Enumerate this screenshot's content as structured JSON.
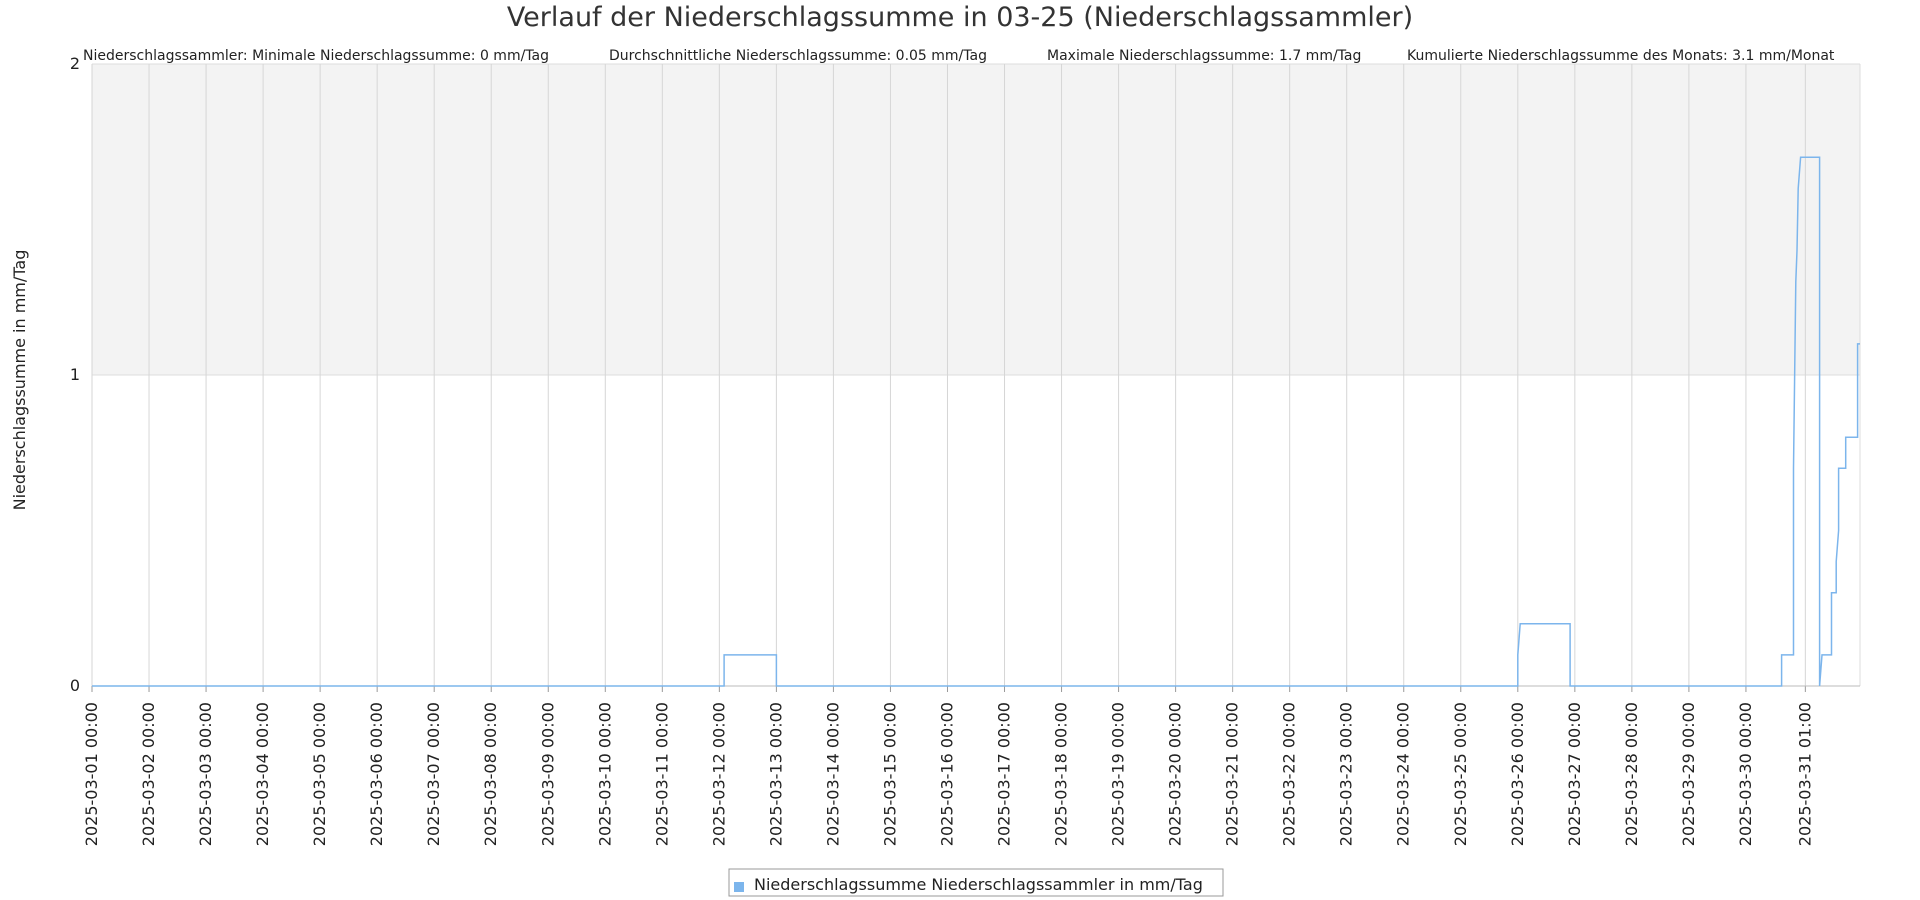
{
  "chart_data": {
    "type": "line",
    "title": "Verlauf der Niederschlagssumme in 03-25 (Niederschlagssammler)",
    "stats": [
      "Niederschlagssammler: Minimale Niederschlagssumme: 0 mm/Tag",
      "Durchschnittliche Niederschlagssumme: 0.05 mm/Tag",
      "Maximale Niederschlagssumme: 1.7 mm/Tag",
      "Kumulierte Niederschlagssumme des Monats: 3.1 mm/Monat"
    ],
    "ylabel": "Niederschlagssumme in mm/Tag",
    "xlabel": "",
    "ylim": [
      0,
      2
    ],
    "yticks": [
      "0",
      "1",
      "2"
    ],
    "xlim": [
      "2025-03-01 00:00",
      "2025-04-01 00:00"
    ],
    "xticks": [
      "2025-03-01 00:00",
      "2025-03-02 00:00",
      "2025-03-03 00:00",
      "2025-03-04 00:00",
      "2025-03-05 00:00",
      "2025-03-06 00:00",
      "2025-03-07 00:00",
      "2025-03-08 00:00",
      "2025-03-09 00:00",
      "2025-03-10 00:00",
      "2025-03-11 00:00",
      "2025-03-12 00:00",
      "2025-03-13 00:00",
      "2025-03-14 00:00",
      "2025-03-15 00:00",
      "2025-03-16 00:00",
      "2025-03-17 00:00",
      "2025-03-18 00:00",
      "2025-03-19 00:00",
      "2025-03-20 00:00",
      "2025-03-21 00:00",
      "2025-03-22 00:00",
      "2025-03-23 00:00",
      "2025-03-24 00:00",
      "2025-03-25 00:00",
      "2025-03-26 00:00",
      "2025-03-27 00:00",
      "2025-03-28 00:00",
      "2025-03-29 00:00",
      "2025-03-30 00:00",
      "2025-03-31 01:00"
    ],
    "highlight_band": [
      1,
      2
    ],
    "grid": true,
    "legend_position": "bottom-center",
    "series": [
      {
        "name": "Niederschlagssumme Niederschlagssammler in mm/Tag",
        "color": "#7cb5ec",
        "step": true,
        "points": [
          [
            "2025-03-01 00:00",
            0
          ],
          [
            "2025-03-12 02:00",
            0
          ],
          [
            "2025-03-12 02:00",
            0.1
          ],
          [
            "2025-03-13 00:00",
            0.1
          ],
          [
            "2025-03-13 00:00",
            0
          ],
          [
            "2025-03-26 00:00",
            0
          ],
          [
            "2025-03-26 00:00",
            0.1
          ],
          [
            "2025-03-26 01:00",
            0.2
          ],
          [
            "2025-03-26 22:00",
            0.2
          ],
          [
            "2025-03-26 22:00",
            0
          ],
          [
            "2025-03-30 15:00",
            0
          ],
          [
            "2025-03-30 15:00",
            0.1
          ],
          [
            "2025-03-30 20:00",
            0.1
          ],
          [
            "2025-03-30 20:00",
            0.7
          ],
          [
            "2025-03-30 21:00",
            1.3
          ],
          [
            "2025-03-30 21:30",
            1.4
          ],
          [
            "2025-03-30 22:00",
            1.6
          ],
          [
            "2025-03-30 23:00",
            1.7
          ],
          [
            "2025-03-31 07:00",
            1.7
          ],
          [
            "2025-03-31 07:00",
            0
          ],
          [
            "2025-03-31 08:00",
            0.1
          ],
          [
            "2025-03-31 12:00",
            0.1
          ],
          [
            "2025-03-31 12:00",
            0.3
          ],
          [
            "2025-03-31 14:00",
            0.3
          ],
          [
            "2025-03-31 14:00",
            0.4
          ],
          [
            "2025-03-31 15:00",
            0.5
          ],
          [
            "2025-03-31 15:00",
            0.7
          ],
          [
            "2025-03-31 18:00",
            0.7
          ],
          [
            "2025-03-31 18:00",
            0.8
          ],
          [
            "2025-03-31 23:00",
            0.8
          ],
          [
            "2025-03-31 23:00",
            1.1
          ],
          [
            "2025-04-01 00:00",
            1.1
          ]
        ]
      }
    ]
  }
}
